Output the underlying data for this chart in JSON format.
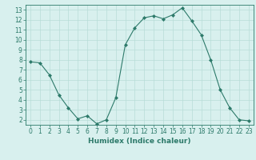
{
  "x": [
    0,
    1,
    2,
    3,
    4,
    5,
    6,
    7,
    8,
    9,
    10,
    11,
    12,
    13,
    14,
    15,
    16,
    17,
    18,
    19,
    20,
    21,
    22,
    23
  ],
  "y": [
    7.8,
    7.7,
    6.5,
    4.5,
    3.2,
    2.1,
    2.4,
    1.6,
    2.0,
    4.2,
    9.5,
    11.2,
    12.2,
    12.4,
    12.1,
    12.5,
    13.2,
    11.9,
    10.5,
    8.0,
    5.0,
    3.2,
    2.0,
    1.9
  ],
  "line_color": "#2d7a6a",
  "marker": "D",
  "marker_size": 2,
  "bg_color": "#d8f0ee",
  "grid_color": "#b8ddd8",
  "xlabel": "Humidex (Indice chaleur)",
  "ylim": [
    1.5,
    13.5
  ],
  "xlim": [
    -0.5,
    23.5
  ],
  "yticks": [
    2,
    3,
    4,
    5,
    6,
    7,
    8,
    9,
    10,
    11,
    12,
    13
  ],
  "xticks": [
    0,
    1,
    2,
    3,
    4,
    5,
    6,
    7,
    8,
    9,
    10,
    11,
    12,
    13,
    14,
    15,
    16,
    17,
    18,
    19,
    20,
    21,
    22,
    23
  ],
  "label_fontsize": 6.5,
  "tick_fontsize": 5.5
}
